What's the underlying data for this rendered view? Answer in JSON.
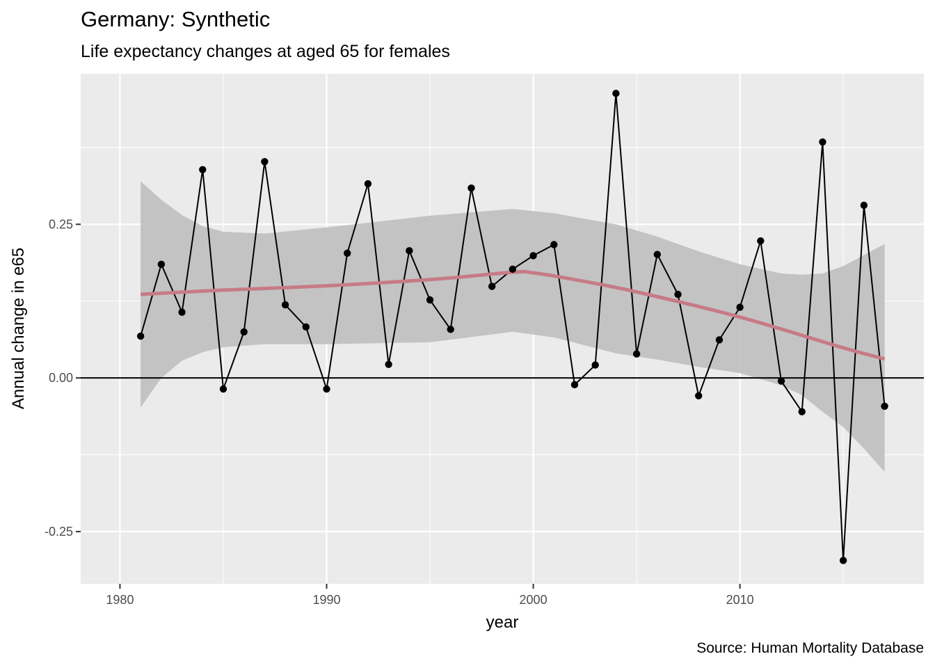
{
  "chart_data": {
    "type": "line",
    "title": "Germany: Synthetic",
    "subtitle": "Life expectancy changes at aged 65 for females",
    "caption": "Source: Human Mortality Database",
    "xlabel": "year",
    "ylabel": "Annual change in e65",
    "xlim": [
      1978.1,
      2018.9
    ],
    "ylim": [
      -0.335,
      0.495
    ],
    "x_ticks": [
      1980,
      1990,
      2000,
      2010
    ],
    "y_ticks": [
      -0.25,
      0.0,
      0.25
    ],
    "y_tick_labels": [
      "-0.25",
      "0.00",
      "0.25"
    ],
    "grid": true,
    "reference_line_y": 0,
    "series": [
      {
        "type": "line+points",
        "color": "#000000",
        "x": [
          1981,
          1982,
          1983,
          1984,
          1985,
          1986,
          1987,
          1988,
          1989,
          1990,
          1991,
          1992,
          1993,
          1994,
          1995,
          1996,
          1997,
          1998,
          1999,
          2000,
          2001,
          2002,
          2003,
          2004,
          2005,
          2006,
          2007,
          2008,
          2009,
          2010,
          2011,
          2012,
          2013,
          2014,
          2015,
          2016,
          2017
        ],
        "y": [
          0.068,
          0.185,
          0.107,
          0.339,
          -0.018,
          0.075,
          0.352,
          0.119,
          0.083,
          -0.018,
          0.203,
          0.316,
          0.022,
          0.207,
          0.127,
          0.079,
          0.309,
          0.149,
          0.177,
          0.199,
          0.217,
          -0.011,
          0.021,
          0.463,
          0.039,
          0.201,
          0.136,
          -0.029,
          0.062,
          0.115,
          0.223,
          -0.005,
          -0.055,
          0.384,
          -0.297,
          0.281,
          -0.046
        ]
      },
      {
        "type": "smooth",
        "color": "#c67b86",
        "x": [
          1981,
          1985,
          1990,
          1995,
          1999,
          2000,
          2002,
          2005,
          2010,
          2015,
          2017
        ],
        "y": [
          0.136,
          0.143,
          0.15,
          0.16,
          0.172,
          0.171,
          0.16,
          0.14,
          0.099,
          0.049,
          0.031
        ]
      },
      {
        "type": "confidence-band",
        "color": "#bfbfbf",
        "x": [
          1981,
          1982,
          1983,
          1984,
          1985,
          1987,
          1990,
          1995,
          1999,
          2001,
          2004,
          2006,
          2008,
          2010,
          2012,
          2013,
          2014,
          2015,
          2016,
          2017
        ],
        "upper": [
          0.32,
          0.29,
          0.265,
          0.247,
          0.238,
          0.235,
          0.245,
          0.264,
          0.275,
          0.268,
          0.25,
          0.23,
          0.206,
          0.185,
          0.17,
          0.168,
          0.17,
          0.182,
          0.2,
          0.218
        ],
        "lower": [
          -0.048,
          0.0,
          0.028,
          0.042,
          0.05,
          0.055,
          0.055,
          0.058,
          0.075,
          0.066,
          0.04,
          0.03,
          0.018,
          0.008,
          -0.012,
          -0.028,
          -0.055,
          -0.08,
          -0.115,
          -0.153
        ]
      }
    ]
  }
}
